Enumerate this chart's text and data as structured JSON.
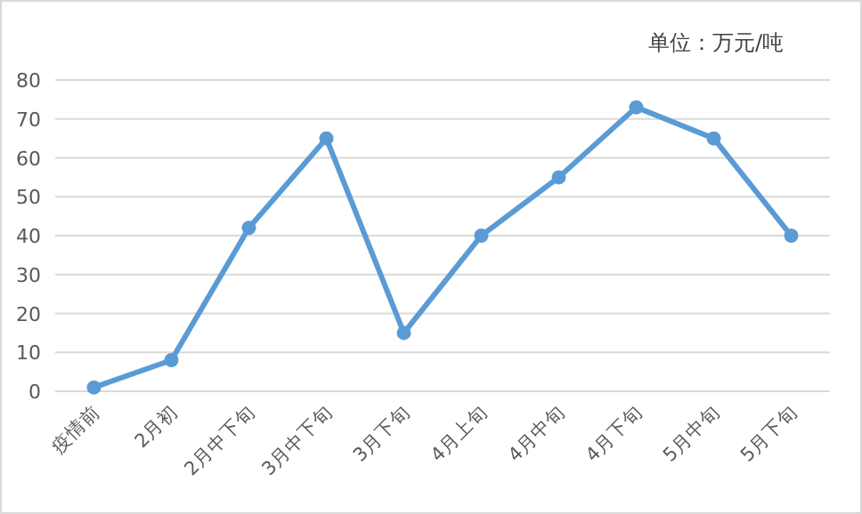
{
  "chart_data": {
    "type": "line",
    "annotations": [
      "单位：万元/吨"
    ],
    "categories": [
      "疫情前",
      "2月初",
      "2月中下旬",
      "3月中下旬",
      "3月下旬",
      "4月上旬",
      "4月中旬",
      "4月下旬",
      "5月中旬",
      "5月下旬"
    ],
    "series": [
      {
        "color": "#5b9bd5",
        "values": [
          1,
          8,
          42,
          65,
          15,
          40,
          55,
          73,
          65,
          40
        ]
      }
    ],
    "ylim": [
      0,
      80
    ],
    "yticks": [
      0,
      10,
      20,
      30,
      40,
      50,
      60,
      70,
      80
    ],
    "grid": "y",
    "marker": "circle",
    "line_style": "solid"
  }
}
